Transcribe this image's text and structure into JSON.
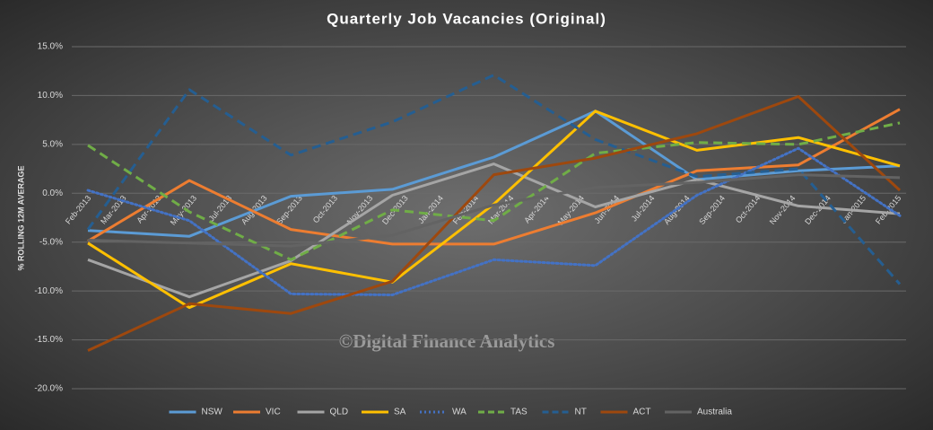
{
  "chart_data": {
    "type": "line",
    "title": "Quarterly Job Vacancies (Original)",
    "y_label": "% ROLLING 12M AVERAGE",
    "watermark": "©Digital Finance Analytics",
    "x_tick_labels": [
      "Feb-2013",
      "Mar-2013",
      "Apr-2013",
      "May-2013",
      "Jul-2013",
      "Aug-2013",
      "Sep-2013",
      "Oct-2013",
      "Nov-2013",
      "Dec-2013",
      "Jan-2014",
      "Feb-2014",
      "Mar-2014",
      "Apr-2014",
      "May-2014",
      "Jun-2014",
      "Jul-2014",
      "Aug-2014",
      "Sep-2014",
      "Oct-2014",
      "Nov-2014",
      "Dec-2014",
      "Jan-2015",
      "Feb-2015"
    ],
    "ylim": [
      -20,
      15
    ],
    "yticks": [
      {
        "value": -20,
        "label": "-20.0%"
      },
      {
        "value": -15,
        "label": "-15.0%"
      },
      {
        "value": -10,
        "label": "-10.0%"
      },
      {
        "value": -5,
        "label": "-5.0%"
      },
      {
        "value": 0,
        "label": "0.0%"
      },
      {
        "value": 5,
        "label": "5.0%"
      },
      {
        "value": 10,
        "label": "10.0%"
      },
      {
        "value": 15,
        "label": "15.0%"
      }
    ],
    "grid": true,
    "legend": "bottom",
    "series": [
      {
        "name": "NSW",
        "color": "#5b9bd5",
        "dash": "solid",
        "values": [
          -3.8,
          -4.4,
          -0.3,
          0.4,
          3.7,
          8.4,
          1.4,
          2.3,
          2.8
        ]
      },
      {
        "name": "VIC",
        "color": "#ed7d31",
        "dash": "solid",
        "values": [
          -4.9,
          1.3,
          -3.7,
          -5.2,
          -5.2,
          -2.0,
          2.3,
          2.9,
          8.6
        ]
      },
      {
        "name": "QLD",
        "color": "#a5a5a5",
        "dash": "solid",
        "values": [
          -6.8,
          -10.6,
          -6.9,
          -0.2,
          3.0,
          -1.4,
          1.4,
          -1.3,
          -2.1
        ]
      },
      {
        "name": "SA",
        "color": "#ffc000",
        "dash": "solid",
        "values": [
          -5.1,
          -11.7,
          -7.2,
          -9.1,
          -1.1,
          8.4,
          4.4,
          5.7,
          2.8
        ]
      },
      {
        "name": "WA",
        "color": "#4472c4",
        "dash": "dot",
        "values": [
          0.3,
          -2.8,
          -10.3,
          -10.4,
          -6.8,
          -7.4,
          -0.2,
          4.6,
          -2.3
        ]
      },
      {
        "name": "TAS",
        "color": "#70ad47",
        "dash": "dash",
        "values": [
          4.9,
          -1.9,
          -6.8,
          -1.7,
          -2.8,
          4.1,
          5.2,
          5.0,
          7.2
        ]
      },
      {
        "name": "NT",
        "color": "#255e91",
        "dash": "dash",
        "values": [
          -3.7,
          10.6,
          3.9,
          7.3,
          12.1,
          5.5,
          1.7,
          2.5,
          -9.3
        ]
      },
      {
        "name": "ACT",
        "color": "#9e480e",
        "dash": "solid",
        "values": [
          -16.1,
          -11.3,
          -12.3,
          -9.0,
          1.9,
          3.6,
          6.1,
          9.9,
          0.3
        ]
      },
      {
        "name": "Australia",
        "color": "#636363",
        "dash": "solid",
        "values": [
          -4.8,
          -5.1,
          -5.4,
          -4.3,
          -1.2,
          0.6,
          1.1,
          1.9,
          1.6
        ]
      }
    ]
  }
}
